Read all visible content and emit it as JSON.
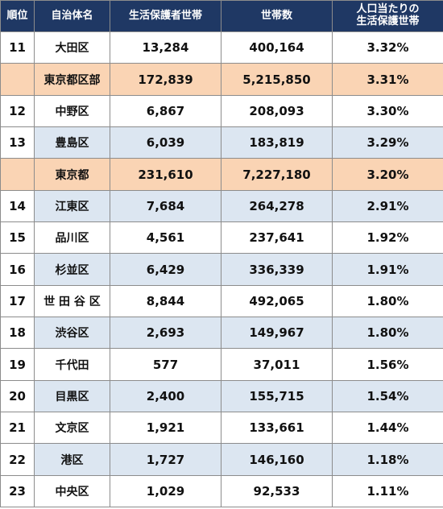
{
  "header": {
    "rank": "順位",
    "municipality": "自治体名",
    "welfare_households": "生活保護者世帯",
    "households": "世帯数",
    "per_capita_line1": "人口当たりの",
    "per_capita_line2": "生活保護世帯"
  },
  "rows": [
    {
      "rank": "11",
      "name": "大田区",
      "welfare": "13,284",
      "households": "400,164",
      "ratio": "3.32%",
      "style": "white"
    },
    {
      "rank": "",
      "name": "東京都区部",
      "welfare": "172,839",
      "households": "5,215,850",
      "ratio": "3.31%",
      "style": "orange"
    },
    {
      "rank": "12",
      "name": "中野区",
      "welfare": "6,867",
      "households": "208,093",
      "ratio": "3.30%",
      "style": "white"
    },
    {
      "rank": "13",
      "name": "豊島区",
      "welfare": "6,039",
      "households": "183,819",
      "ratio": "3.29%",
      "style": "blue"
    },
    {
      "rank": "",
      "name": "東京都",
      "welfare": "231,610",
      "households": "7,227,180",
      "ratio": "3.20%",
      "style": "orange"
    },
    {
      "rank": "14",
      "name": "江東区",
      "welfare": "7,684",
      "households": "264,278",
      "ratio": "2.91%",
      "style": "blue"
    },
    {
      "rank": "15",
      "name": "品川区",
      "welfare": "4,561",
      "households": "237,641",
      "ratio": "1.92%",
      "style": "white"
    },
    {
      "rank": "16",
      "name": "杉並区",
      "welfare": "6,429",
      "households": "336,339",
      "ratio": "1.91%",
      "style": "blue"
    },
    {
      "rank": "17",
      "name": "世 田 谷 区",
      "welfare": "8,844",
      "households": "492,065",
      "ratio": "1.80%",
      "style": "white"
    },
    {
      "rank": "18",
      "name": "渋谷区",
      "welfare": "2,693",
      "households": "149,967",
      "ratio": "1.80%",
      "style": "blue"
    },
    {
      "rank": "19",
      "name": "千代田",
      "welfare": "577",
      "households": "37,011",
      "ratio": "1.56%",
      "style": "white"
    },
    {
      "rank": "20",
      "name": "目黒区",
      "welfare": "2,400",
      "households": "155,715",
      "ratio": "1.54%",
      "style": "blue"
    },
    {
      "rank": "21",
      "name": "文京区",
      "welfare": "1,921",
      "households": "133,661",
      "ratio": "1.44%",
      "style": "white"
    },
    {
      "rank": "22",
      "name": "港区",
      "welfare": "1,727",
      "households": "146,160",
      "ratio": "1.18%",
      "style": "blue"
    },
    {
      "rank": "23",
      "name": "中央区",
      "welfare": "1,029",
      "households": "92,533",
      "ratio": "1.11%",
      "style": "white"
    }
  ]
}
